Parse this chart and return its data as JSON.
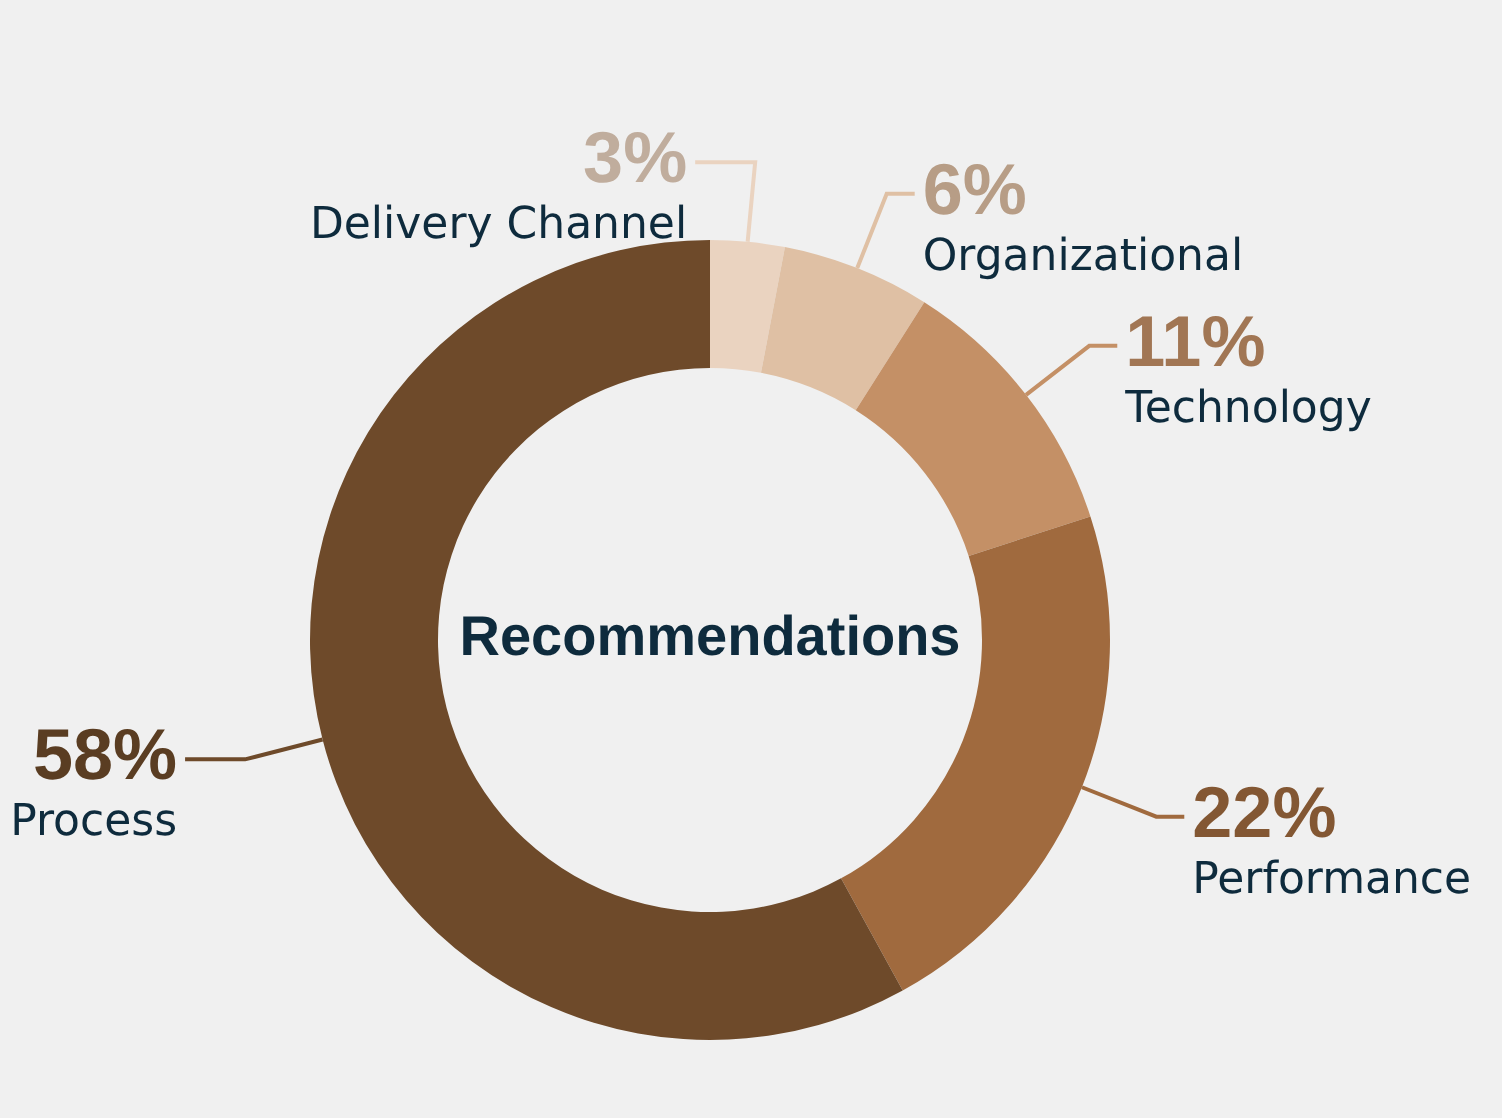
{
  "chart_data": {
    "type": "donut",
    "title": "Recommendations",
    "categories": [
      "Delivery Channel",
      "Organizational",
      "Technology",
      "Performance",
      "Process"
    ],
    "values": [
      3,
      6,
      11,
      22,
      58
    ],
    "value_labels": [
      "3%",
      "6%",
      "11%",
      "22%",
      "58%"
    ],
    "colors": [
      "#ead3c0",
      "#dfc0a4",
      "#c49066",
      "#a06a3e",
      "#6e4a2a"
    ],
    "legend": false
  }
}
